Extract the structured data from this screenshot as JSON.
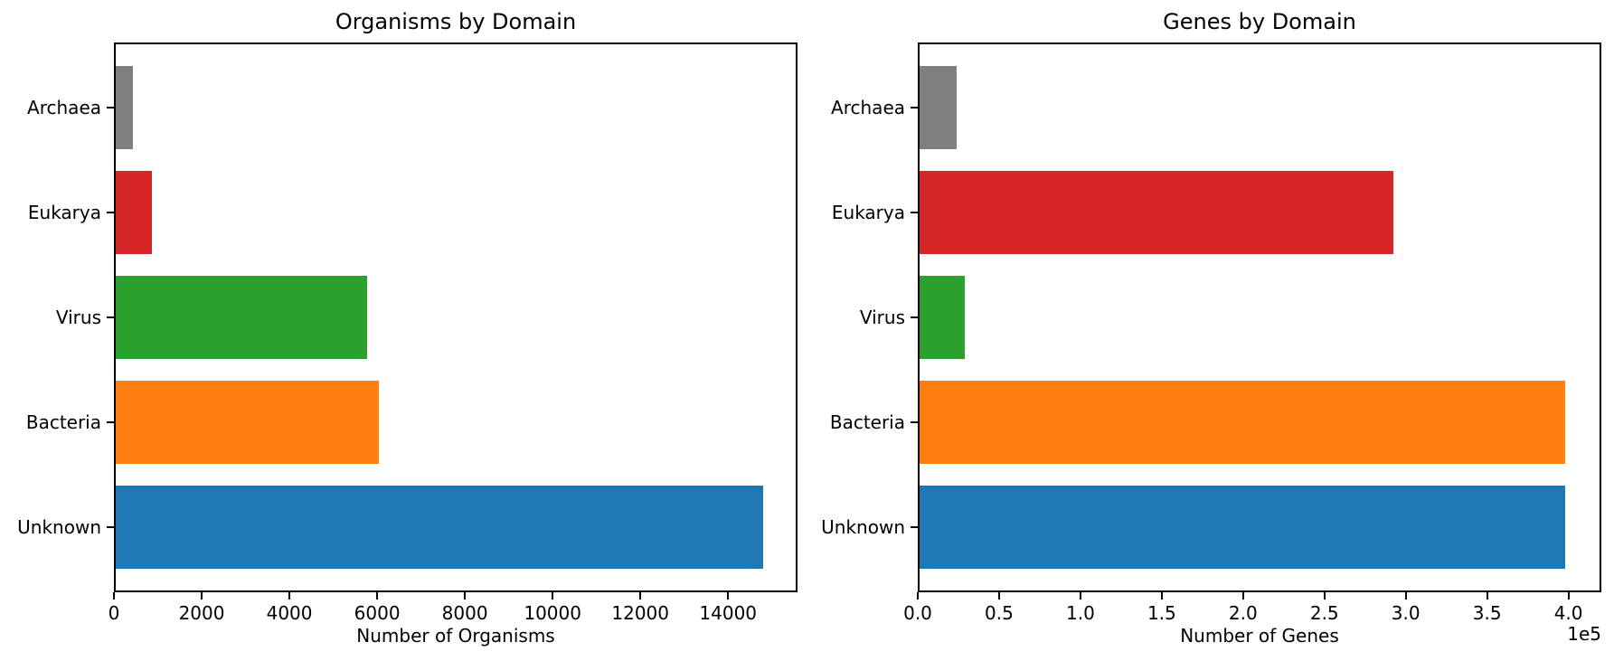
{
  "figure": {
    "background": "#ffffff",
    "text_color": "#000000",
    "spine_color": "#000000"
  },
  "chart_data": [
    {
      "type": "bar",
      "orientation": "horizontal",
      "title": "Organisms by Domain",
      "xlabel": "Number of Organisms",
      "offset_label": "",
      "category_order": "top-to-bottom",
      "categories": [
        "Archaea",
        "Eukarya",
        "Virus",
        "Bacteria",
        "Unknown"
      ],
      "values": [
        390,
        830,
        5740,
        6000,
        14760
      ],
      "bar_colors": [
        "#7f7f7f",
        "#d62728",
        "#2ca02c",
        "#ff7f0e",
        "#1f77b4"
      ],
      "xlim": [
        0,
        15500
      ],
      "xticks": [
        0,
        2000,
        4000,
        6000,
        8000,
        10000,
        12000,
        14000
      ],
      "xtick_labels": [
        "0",
        "2000",
        "4000",
        "6000",
        "8000",
        "10000",
        "12000",
        "14000"
      ],
      "grid": false,
      "legend": "none"
    },
    {
      "type": "bar",
      "orientation": "horizontal",
      "title": "Genes by Domain",
      "xlabel": "Number of Genes",
      "offset_label": "1e5",
      "category_order": "top-to-bottom",
      "categories": [
        "Archaea",
        "Eukarya",
        "Virus",
        "Bacteria",
        "Unknown"
      ],
      "values": [
        23000,
        291000,
        28000,
        397000,
        397000
      ],
      "bar_colors": [
        "#7f7f7f",
        "#d62728",
        "#2ca02c",
        "#ff7f0e",
        "#1f77b4"
      ],
      "xlim": [
        0,
        418000
      ],
      "xticks": [
        0,
        50000,
        100000,
        150000,
        200000,
        250000,
        300000,
        350000,
        400000
      ],
      "xtick_labels": [
        "0.0",
        "0.5",
        "1.0",
        "1.5",
        "2.0",
        "2.5",
        "3.0",
        "3.5",
        "4.0"
      ],
      "grid": false,
      "legend": "none"
    }
  ]
}
